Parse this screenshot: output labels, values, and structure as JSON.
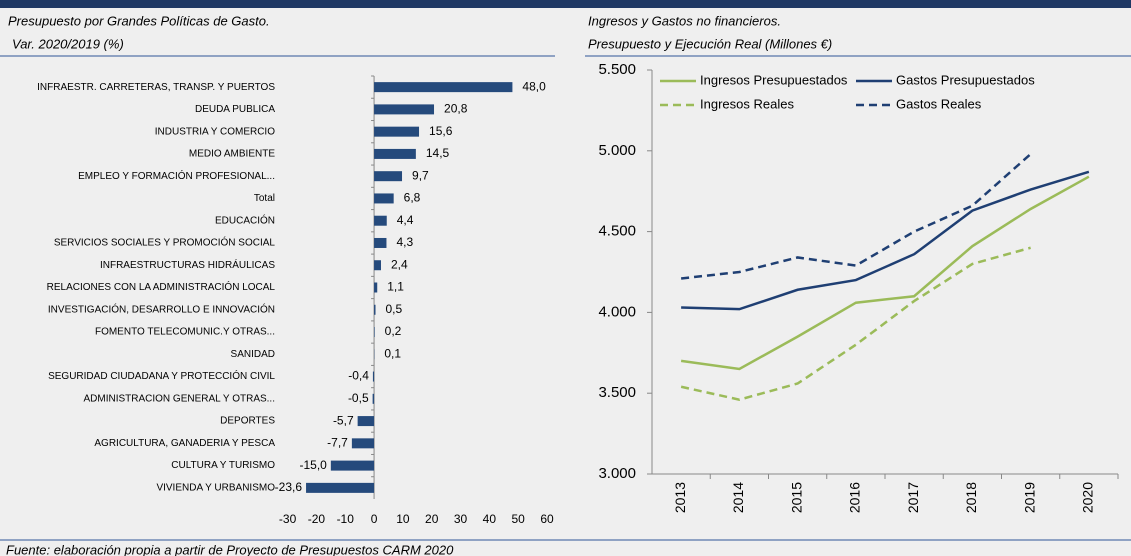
{
  "chart_data": [
    {
      "type": "hbar",
      "title": "Presupuesto por Grandes Políticas de Gasto.",
      "subtitle": "Var. 2020/2019 (%)",
      "categories": [
        "INFRAESTR. CARRETERAS, TRANSP. Y PUERTOS",
        "DEUDA PUBLICA",
        "INDUSTRIA Y COMERCIO",
        "MEDIO AMBIENTE",
        "EMPLEO Y FORMACIÓN PROFESIONAL...",
        "Total",
        "EDUCACIÓN",
        "SERVICIOS SOCIALES Y PROMOCIÓN SOCIAL",
        "INFRAESTRUCTURAS HIDRÁULICAS",
        "RELACIONES CON LA ADMINISTRACIÓN LOCAL",
        "INVESTIGACIÓN, DESARROLLO E INNOVACIÓN",
        "FOMENTO TELECOMUNIC.Y OTRAS...",
        "SANIDAD",
        "SEGURIDAD CIUDADANA Y PROTECCIÓN CIVIL",
        "ADMINISTRACION GENERAL Y OTRAS...",
        "DEPORTES",
        "AGRICULTURA, GANADERIA Y PESCA",
        "CULTURA Y TURISMO",
        "VIVIENDA Y URBANISMO"
      ],
      "values": [
        48.0,
        20.8,
        15.6,
        14.5,
        9.7,
        6.8,
        4.4,
        4.3,
        2.4,
        1.1,
        0.5,
        0.2,
        0.1,
        -0.4,
        -0.5,
        -5.7,
        -7.7,
        -15.0,
        -23.6
      ],
      "value_labels": [
        "48,0",
        "20,8",
        "15,6",
        "14,5",
        "9,7",
        "6,8",
        "4,4",
        "4,3",
        "2,4",
        "1,1",
        "0,5",
        "0,2",
        "0,1",
        "-0,4",
        "-0,5",
        "-5,7",
        "-7,7",
        "-15,0",
        "-23,6"
      ],
      "color": "#254a7c",
      "xlim": [
        -30,
        60
      ],
      "xticks": [
        -30,
        -20,
        -10,
        0,
        10,
        20,
        30,
        40,
        50,
        60
      ]
    },
    {
      "type": "line",
      "title": "Ingresos y Gastos no financieros.",
      "subtitle": "Presupuesto y Ejecución Real (Millones €)",
      "categories": [
        "2013",
        "2014",
        "2015",
        "2016",
        "2017",
        "2018",
        "2019",
        "2020"
      ],
      "series": [
        {
          "name": "Ingresos Presupuestados",
          "color": "#9bbb59",
          "dashed": false,
          "values": [
            3700,
            3650,
            3850,
            4060,
            4100,
            4410,
            4640,
            4840
          ]
        },
        {
          "name": "Gastos  Presupuestados",
          "color": "#1f3f73",
          "dashed": false,
          "values": [
            4030,
            4020,
            4140,
            4200,
            4360,
            4630,
            4760,
            4870
          ]
        },
        {
          "name": "Ingresos Reales",
          "color": "#9bbb59",
          "dashed": true,
          "values": [
            3540,
            3460,
            3560,
            3800,
            4070,
            4300,
            4400,
            null
          ]
        },
        {
          "name": "Gastos Reales",
          "color": "#1f3f73",
          "dashed": true,
          "values": [
            4210,
            4250,
            4340,
            4290,
            4500,
            4660,
            4980,
            null
          ]
        }
      ],
      "ylim": [
        3000,
        5500
      ],
      "yticks": [
        {
          "value": 3000,
          "label": "3.000"
        },
        {
          "value": 3500,
          "label": "3.500"
        },
        {
          "value": 4000,
          "label": "4.000"
        },
        {
          "value": 4500,
          "label": "4.500"
        },
        {
          "value": 5000,
          "label": "5.000"
        },
        {
          "value": 5500,
          "label": "5.500"
        }
      ],
      "grid": false,
      "legend": "top"
    }
  ],
  "footer": "Fuente: elaboración propia a partir de Proyecto de Presupuestos CARM 2020"
}
